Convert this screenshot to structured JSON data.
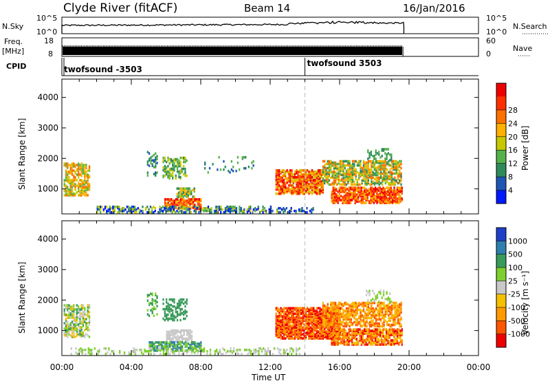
{
  "header": {
    "station": "Clyde River (fitACF)",
    "beam": "Beam 14",
    "date": "16/Jan/2016"
  },
  "nsky": {
    "label": "N.Sky",
    "left_ticks": [
      "10^5",
      "10^0"
    ],
    "right_ticks": [
      "10^5",
      "10^0"
    ],
    "right_label": "N.Search"
  },
  "freq": {
    "label_top": "Freq.",
    "label_unit": "[MHz]",
    "left_ticks": [
      "18",
      "8"
    ],
    "right_ticks": [
      "60",
      "0"
    ],
    "right_label": "Nave"
  },
  "cpid": {
    "label": "CPID",
    "segments": [
      {
        "name": "twofsound -3503",
        "start_hour": 0.0
      },
      {
        "name": "twofsound 3503",
        "start_hour": 14.0
      }
    ]
  },
  "colors": {
    "power": [
      "#0018ff",
      "#1f56b4",
      "#2f8a5a",
      "#55b14a",
      "#c8c800",
      "#ffb000",
      "#ff7000",
      "#ff3000",
      "#ee0000"
    ],
    "velocity": [
      "#ee0000",
      "#ff5500",
      "#ff9a00",
      "#f5c000",
      "#c8c8c8",
      "#7ecf2e",
      "#3a9a5a",
      "#2e7fb0",
      "#1f3fc8"
    ]
  },
  "chart_data": [
    {
      "type": "heatmap",
      "name": "power-panel",
      "ylabel": "Slant Range [km]",
      "colorbar_label": "Power [dB]",
      "colorbar_ticks": [
        "4",
        "8",
        "12",
        "16",
        "20",
        "24",
        "28"
      ],
      "ylim": [
        180,
        4600
      ],
      "yticks": [
        "1000",
        "2000",
        "3000",
        "4000"
      ],
      "xlim": [
        0,
        24
      ],
      "xticks": [
        "00:00",
        "04:00",
        "08:00",
        "12:00",
        "16:00",
        "20:00",
        "00:00"
      ],
      "xlabel": "",
      "regions": [
        {
          "t0": 0.1,
          "t1": 1.6,
          "r0": 750,
          "r1": 1800,
          "c": [
            3,
            6
          ],
          "d": 0.55
        },
        {
          "t0": 4.9,
          "t1": 5.5,
          "r0": 1400,
          "r1": 2200,
          "c": [
            1,
            3
          ],
          "d": 0.3
        },
        {
          "t0": 5.8,
          "t1": 7.2,
          "r0": 1300,
          "r1": 2000,
          "c": [
            2,
            4
          ],
          "d": 0.4
        },
        {
          "t0": 6.6,
          "t1": 7.6,
          "r0": 700,
          "r1": 1000,
          "c": [
            2,
            5
          ],
          "d": 0.5
        },
        {
          "t0": 5.9,
          "t1": 8.0,
          "r0": 300,
          "r1": 650,
          "c": [
            5,
            8
          ],
          "d": 0.7
        },
        {
          "t0": 8.2,
          "t1": 11.0,
          "r0": 1500,
          "r1": 2000,
          "c": [
            1,
            3
          ],
          "d": 0.08
        },
        {
          "t0": 12.3,
          "t1": 15.0,
          "r0": 800,
          "r1": 1600,
          "c": [
            4,
            8
          ],
          "d": 0.75
        },
        {
          "t0": 15.0,
          "t1": 19.5,
          "r0": 1100,
          "r1": 1900,
          "c": [
            2,
            6
          ],
          "d": 0.6
        },
        {
          "t0": 15.5,
          "t1": 19.6,
          "r0": 500,
          "r1": 1000,
          "c": [
            5,
            8
          ],
          "d": 0.7
        },
        {
          "t0": 17.5,
          "t1": 19.0,
          "r0": 1900,
          "r1": 2300,
          "c": [
            2,
            3
          ],
          "d": 0.3
        },
        {
          "t0": 2.0,
          "t1": 12.0,
          "r0": 190,
          "r1": 400,
          "c": [
            0,
            4
          ],
          "d": 0.45
        },
        {
          "t0": 12.0,
          "t1": 14.5,
          "r0": 190,
          "r1": 350,
          "c": [
            0,
            4
          ],
          "d": 0.35
        }
      ]
    },
    {
      "type": "heatmap",
      "name": "velocity-panel",
      "ylabel": "Slant Range [km]",
      "colorbar_label": "Velocity [m s⁻¹]",
      "colorbar_ticks": [
        "-1000",
        "-500",
        "-100",
        "-25",
        "25",
        "100",
        "500",
        "1000"
      ],
      "ylim": [
        180,
        4600
      ],
      "yticks": [
        "1000",
        "2000",
        "3000",
        "4000"
      ],
      "xlim": [
        0,
        24
      ],
      "xticks": [
        "00:00",
        "04:00",
        "08:00",
        "12:00",
        "16:00",
        "20:00",
        "00:00"
      ],
      "xlabel": "Time UT",
      "regions": [
        {
          "t0": 0.1,
          "t1": 1.6,
          "r0": 750,
          "r1": 1800,
          "c": [
            3,
            6
          ],
          "d": 0.55
        },
        {
          "t0": 4.9,
          "t1": 5.5,
          "r0": 1400,
          "r1": 2200,
          "c": [
            5,
            6
          ],
          "d": 0.3
        },
        {
          "t0": 5.8,
          "t1": 7.2,
          "r0": 1300,
          "r1": 2000,
          "c": [
            6,
            6
          ],
          "d": 0.45
        },
        {
          "t0": 6.0,
          "t1": 7.5,
          "r0": 600,
          "r1": 1000,
          "c": [
            4,
            4
          ],
          "d": 0.6
        },
        {
          "t0": 5.0,
          "t1": 8.0,
          "r0": 300,
          "r1": 600,
          "c": [
            5,
            7
          ],
          "d": 0.6
        },
        {
          "t0": 12.3,
          "t1": 16.0,
          "r0": 700,
          "r1": 1700,
          "c": [
            0,
            2
          ],
          "d": 0.8
        },
        {
          "t0": 15.0,
          "t1": 19.5,
          "r0": 1100,
          "r1": 1900,
          "c": [
            1,
            3
          ],
          "d": 0.55
        },
        {
          "t0": 15.5,
          "t1": 19.6,
          "r0": 500,
          "r1": 1000,
          "c": [
            0,
            3
          ],
          "d": 0.7
        },
        {
          "t0": 17.5,
          "t1": 19.0,
          "r0": 1900,
          "r1": 2300,
          "c": [
            4,
            5
          ],
          "d": 0.25
        },
        {
          "t0": 0.5,
          "t1": 14.0,
          "r0": 190,
          "r1": 380,
          "c": [
            4,
            5
          ],
          "d": 0.25
        }
      ]
    }
  ]
}
